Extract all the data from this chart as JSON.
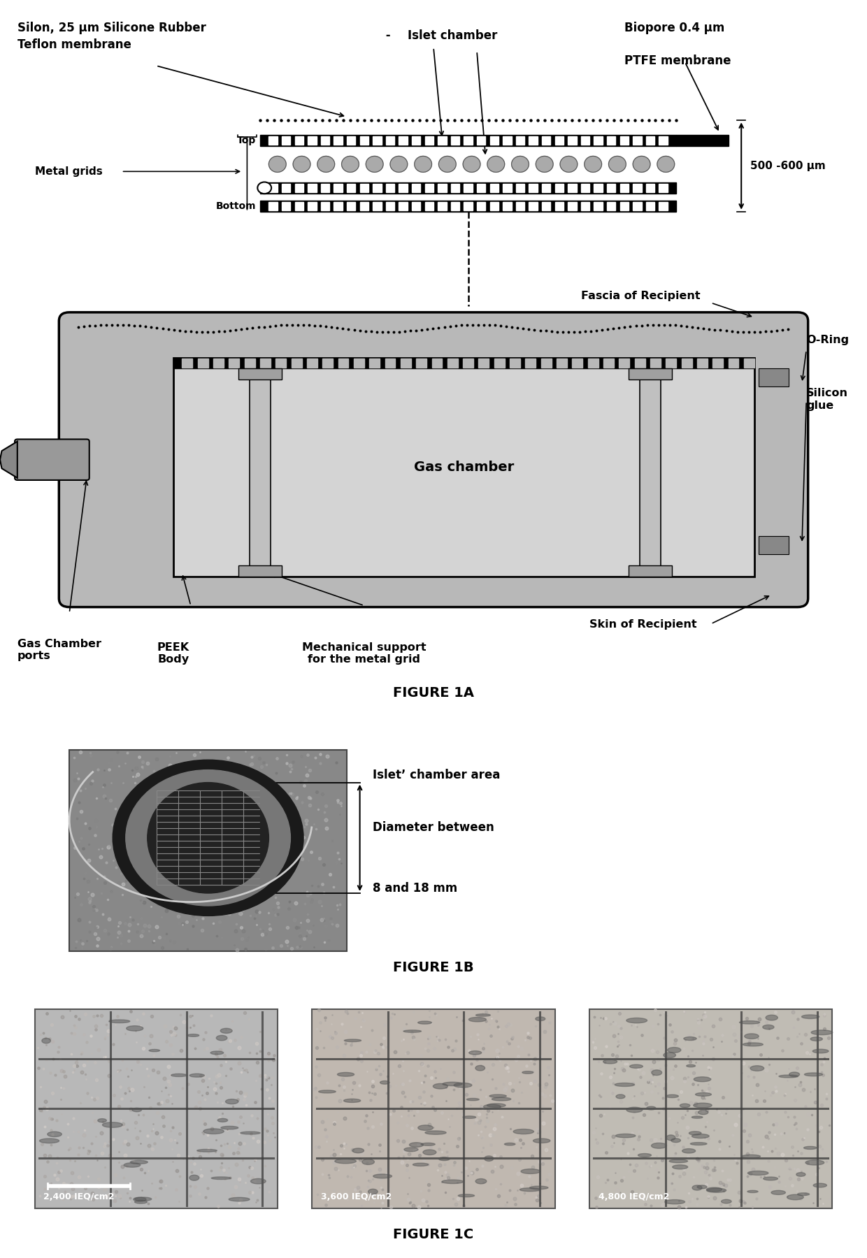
{
  "bg_color": "#ffffff",
  "figure_1a": {
    "caption": "FIGURE 1A",
    "labels_top_left": "Silon, 25 μm Silicone Rubber\nTeflon membrane",
    "label_top_center": "Islet chamber",
    "label_dash": " -",
    "label_top_right1": "Biopore 0.4 μm",
    "label_top_right2": "PTFE membrane",
    "label_right_mid": "500 -600 μm",
    "label_metal_grids": "Metal grids",
    "label_top": "Top",
    "label_bottom": "Bottom",
    "label_fascia": "Fascia of Recipient",
    "label_oring": "O-Ring",
    "label_silicon_glue": "Silicon\nglue",
    "label_skin": "Skin of Recipient",
    "label_gas_chamber_ports": "Gas Chamber\nports",
    "label_peek_body": "PEEK\nBody",
    "label_mech_support": "Mechanical support\nfor the metal grid",
    "label_gas_chamber": "Gas chamber"
  },
  "figure_1b": {
    "caption": "FIGURE 1B",
    "annotation_line1": "Islet’ chamber area",
    "annotation_line2": "Diameter between",
    "annotation_line3": "8 and 18 mm"
  },
  "figure_1c": {
    "caption": "FIGURE 1C",
    "label1": "2,400 IEQ/cm2",
    "label2": "3,600 IEQ/cm2",
    "label3": "4,800 IEQ/cm2"
  }
}
